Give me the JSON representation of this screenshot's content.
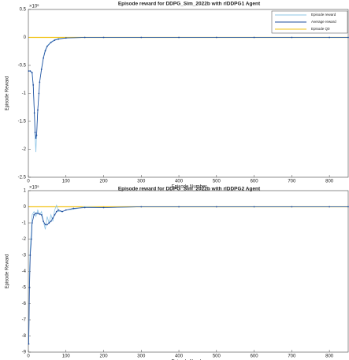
{
  "chart_data": [
    {
      "type": "line",
      "title": "Episode reward for DDPG_Sim_2022b with rlDDPG1 Agent",
      "xlabel": "Episode Number",
      "ylabel": "Episode Reward",
      "y_exponent": "×10⁶",
      "x": [
        1,
        5,
        10,
        13,
        16,
        18,
        20,
        22,
        25,
        28,
        30,
        35,
        40,
        45,
        50,
        60,
        70,
        80,
        100,
        150,
        200,
        300,
        400,
        500,
        600,
        700,
        800,
        850
      ],
      "xlim": [
        0,
        850
      ],
      "xticks": [
        0,
        100,
        200,
        300,
        400,
        500,
        600,
        700,
        800
      ],
      "ylim": [
        -2.5,
        0.5
      ],
      "yticks": [
        -2.5,
        -2,
        -1.5,
        -1,
        -0.5,
        0,
        0.5
      ],
      "legend": "upper right",
      "series": [
        {
          "name": "Episode reward",
          "color": "#8ec5e6",
          "markers": false,
          "values": [
            -0.6,
            -0.6,
            -0.65,
            -0.9,
            -1.4,
            -1.8,
            -2.05,
            -1.7,
            -1.3,
            -1.0,
            -0.8,
            -0.55,
            -0.35,
            -0.22,
            -0.15,
            -0.08,
            -0.04,
            -0.02,
            -0.01,
            0,
            0,
            0,
            0,
            0,
            0,
            0,
            0,
            0
          ]
        },
        {
          "name": "Average reward",
          "color": "#1f4e9e",
          "markers": true,
          "values": [
            -0.6,
            -0.6,
            -0.63,
            -0.85,
            -1.35,
            -1.7,
            -1.8,
            -1.75,
            -1.3,
            -1.0,
            -0.8,
            -0.57,
            -0.37,
            -0.24,
            -0.16,
            -0.09,
            -0.05,
            -0.03,
            -0.01,
            0,
            0,
            0,
            0,
            0,
            0,
            0,
            0,
            0
          ]
        },
        {
          "name": "Episode Q0",
          "color": "#f2c318",
          "markers": false,
          "values": [
            0,
            0,
            0,
            0,
            0,
            0,
            0,
            0,
            0,
            0,
            0,
            0,
            0,
            0,
            0,
            0,
            0,
            0,
            0,
            0,
            0,
            0,
            0,
            0,
            0,
            0,
            0,
            0
          ]
        }
      ]
    },
    {
      "type": "line",
      "title": "Episode reward for DDPG_Sim_2022b with rlDDPG2 Agent",
      "xlabel": "Episode Number",
      "ylabel": "Episode Reward",
      "y_exponent": "×10⁵",
      "x": [
        1,
        3,
        5,
        8,
        10,
        15,
        20,
        25,
        30,
        35,
        40,
        45,
        50,
        55,
        60,
        65,
        70,
        75,
        80,
        90,
        100,
        120,
        150,
        200,
        300,
        400,
        500,
        600,
        700,
        800,
        850
      ],
      "xlim": [
        0,
        850
      ],
      "xticks": [
        0,
        100,
        200,
        300,
        400,
        500,
        600,
        700,
        800
      ],
      "ylim": [
        -9,
        1
      ],
      "yticks": [
        -9,
        -8,
        -7,
        -6,
        -5,
        -4,
        -3,
        -2,
        -1,
        0,
        1
      ],
      "series": [
        {
          "color": "#8ec5e6",
          "markers": false,
          "values": [
            -8.5,
            -4,
            -2.5,
            -1.5,
            -0.5,
            -0.3,
            -0.6,
            -0.2,
            -0.5,
            -0.3,
            -0.9,
            -1.4,
            -0.6,
            -1.0,
            -0.5,
            -0.9,
            -0.2,
            0.1,
            -0.3,
            -0.3,
            -0.2,
            -0.15,
            0,
            -0.05,
            0,
            0,
            0,
            0,
            0,
            0,
            0
          ]
        },
        {
          "color": "#1f4e9e",
          "markers": true,
          "values": [
            -8.5,
            -5,
            -3,
            -2,
            -1,
            -0.5,
            -0.4,
            -0.4,
            -0.45,
            -0.5,
            -0.9,
            -1.1,
            -1.1,
            -1.0,
            -0.9,
            -0.7,
            -0.5,
            -0.3,
            -0.2,
            -0.3,
            -0.2,
            -0.1,
            -0.05,
            -0.05,
            0,
            0,
            0,
            0,
            0,
            0,
            0
          ]
        },
        {
          "color": "#f2c318",
          "markers": false,
          "values": [
            0,
            0,
            0,
            0,
            0,
            0,
            0,
            0,
            0,
            0,
            0,
            0,
            0,
            0,
            0,
            0,
            0,
            0,
            0,
            0,
            0,
            0,
            0,
            0,
            0,
            0,
            0,
            0,
            0,
            0,
            0
          ]
        }
      ]
    }
  ]
}
